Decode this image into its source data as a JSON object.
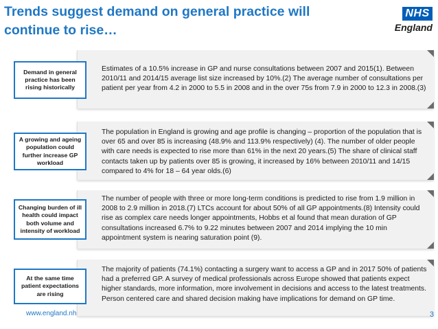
{
  "slide": {
    "title": "Trends suggest demand on general practice will continue to rise…",
    "logo": {
      "badge": "NHS",
      "text": "England"
    },
    "rows": [
      {
        "label": "Demand in general practice has been rising historically",
        "text": "Estimates of a 10.5% increase in GP and nurse consultations between 2007 and 2015(1). Between 2010/11 and 2014/15 average list size increased by 10%.(2) The average number of consultations per patient per year from 4.2 in 2000 to 5.5 in 2008 and in the over 75s from 7.9 in 2000 to 12.3 in 2008.(3)"
      },
      {
        "label": "A growing and ageing population could further increase GP workload",
        "text": "The population in England is growing and age profile is changing – proportion of the population that is over 65 and over 85 is increasing (48.9% and 113.9% respectively) (4). The number of older people with care needs is expected to rise more than 61% in the next 20 years.(5) The share of clinical staff contacts taken up by patients over 85 is growing, it increased by 16% between 2010/11 and 14/15 compared to 4% for 18 – 64 year olds.(6)"
      },
      {
        "label": "Changing burden of ill health could impact both volume and intensity of workload",
        "text": "The number of people with three or more long-term conditions is predicted to rise from 1.9 million in 2008 to 2.9 million in 2018.(7) LTCs account for about 50% of all GP appointments.(8) Intensity could rise as complex care needs longer appointments, Hobbs et al found that mean duration of GP consultations increased 6.7% to 9.22 minutes between 2007 and 2014  implying the 10 min appointment system is nearing saturation point (9)."
      },
      {
        "label": "At the same time patient expectations are rising",
        "text": "The majority of patients (74.1%) contacting a surgery want to access a  GP and in 2017 50% of patients had a preferred GP. A survey of medical professionals across Europe showed that patients expect higher standards, more information, more involvement in decisions and access to the latest treatments. Person centered care and shared decision making have implications for demand on GP time."
      }
    ],
    "footer_url": "www.england.nh",
    "page_number": "3"
  },
  "colors": {
    "accent": "#1f77c4",
    "nhs_blue": "#005eb8",
    "block_bg": "#f1f1f1"
  }
}
